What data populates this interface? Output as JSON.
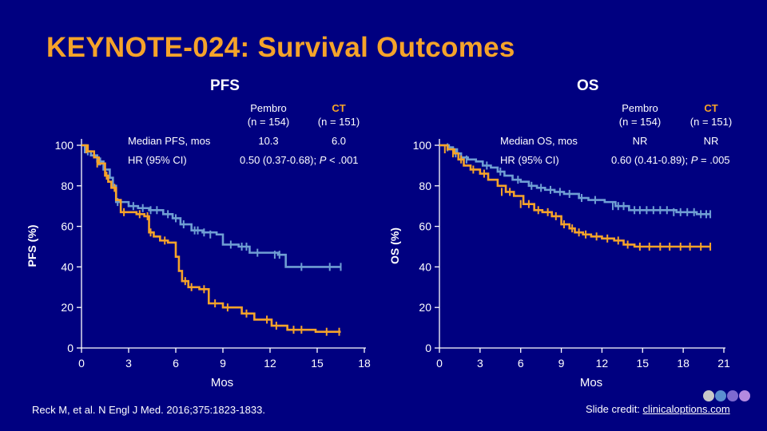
{
  "slide": {
    "title": "KEYNOTE-024: Survival Outcomes",
    "reference": "Reck M, et al. N Engl J Med. 2016;375:1823-1833.",
    "credit_prefix": "Slide credit: ",
    "credit_link": "clinicaloptions.com"
  },
  "colors": {
    "background": "#000080",
    "title": "#f5a32a",
    "pembro": "#6f9ed3",
    "ct": "#f5a32a"
  },
  "pfs": {
    "panel_title": "PFS",
    "table": {
      "col1_name": "Pembro",
      "col1_n": "(n = 154)",
      "col2_name": "CT",
      "col2_n": "(n = 151)",
      "row1_label": "Median PFS, mos",
      "row1_val1": "10.3",
      "row1_val2": "6.0",
      "row2_label": "HR (95% CI)",
      "row2_val_prefix": "0.50 (0.37-0.68); ",
      "row2_val_p": "P",
      "row2_val_suffix": " < .001"
    }
  },
  "os": {
    "panel_title": "OS",
    "table": {
      "col1_name": "Pembro",
      "col1_n": "(n = 154)",
      "col2_name": "CT",
      "col2_n": "(n = 151)",
      "row1_label": "Median OS, mos",
      "row1_val1": "NR",
      "row1_val2": "NR",
      "row2_label": "HR (95% CI)",
      "row2_val_prefix": "0.60 (0.41-0.89); ",
      "row2_val_p": "P",
      "row2_val_suffix": " = .005"
    }
  },
  "chart_data": [
    {
      "type": "line",
      "step": true,
      "title": "PFS",
      "xlabel": "Mos",
      "ylabel": "PFS (%)",
      "xticks": [
        0,
        3,
        6,
        9,
        12,
        15,
        18
      ],
      "yticks": [
        0,
        20,
        40,
        60,
        80,
        100
      ],
      "xlim": [
        0,
        18
      ],
      "ylim": [
        0,
        100
      ],
      "series": [
        {
          "name": "Pembro",
          "color": "#6f9ed3",
          "x": [
            0,
            0.3,
            0.6,
            1.0,
            1.4,
            1.8,
            2.0,
            2.2,
            3.0,
            3.6,
            4.3,
            5.2,
            5.8,
            6.3,
            7.0,
            7.7,
            8.6,
            9.0,
            10.0,
            10.7,
            12.5,
            13.0,
            14.9,
            16.5
          ],
          "y": [
            100,
            97,
            95,
            92,
            88,
            84,
            80,
            72,
            70,
            69,
            68,
            66,
            64,
            61,
            58,
            57,
            56,
            51,
            50,
            47,
            46,
            40,
            40,
            40
          ],
          "censor_x": [
            0.2,
            0.4,
            1.1,
            1.2,
            1.5,
            2.3,
            3.3,
            3.9,
            4.4,
            4.8,
            5.5,
            6.0,
            6.5,
            7.2,
            7.4,
            7.8,
            8.2,
            9.5,
            10.2,
            10.5,
            11.2,
            12.3,
            12.6,
            14.0,
            15.8,
            16.5
          ],
          "censor_y": [
            98,
            97,
            92,
            92,
            88,
            72,
            70,
            69,
            68,
            68,
            66,
            64,
            61,
            58,
            58,
            57,
            56,
            51,
            50,
            50,
            47,
            46,
            46,
            40,
            40,
            40
          ]
        },
        {
          "name": "CT",
          "color": "#f5a32a",
          "x": [
            0,
            0.4,
            0.8,
            1.1,
            1.5,
            1.7,
            1.9,
            2.2,
            2.5,
            3.5,
            4.0,
            4.3,
            4.6,
            5.0,
            5.5,
            6.0,
            6.2,
            6.4,
            6.8,
            7.5,
            8.1,
            9.0,
            10.2,
            11.0,
            12.1,
            13.1,
            14.9,
            16.5
          ],
          "y": [
            100,
            97,
            94,
            91,
            85,
            82,
            79,
            73,
            67,
            66,
            65,
            57,
            55,
            53,
            52,
            45,
            38,
            33,
            30,
            29,
            22,
            20,
            17,
            14,
            11,
            9,
            8,
            8
          ],
          "censor_x": [
            0.3,
            1.0,
            1.6,
            2.1,
            2.7,
            3.7,
            4.2,
            4.4,
            5.3,
            6.6,
            7.0,
            7.8,
            8.5,
            9.3,
            10.5,
            11.8,
            12.4,
            13.5,
            14.0,
            15.6,
            16.4
          ],
          "censor_y": [
            98,
            91,
            85,
            79,
            67,
            66,
            65,
            57,
            53,
            33,
            30,
            29,
            22,
            20,
            17,
            14,
            11,
            9,
            9,
            8,
            8
          ]
        }
      ]
    },
    {
      "type": "line",
      "step": true,
      "title": "OS",
      "xlabel": "Mos",
      "ylabel": "OS (%)",
      "xticks": [
        0,
        3,
        6,
        9,
        12,
        15,
        18,
        21
      ],
      "yticks": [
        0,
        20,
        40,
        60,
        80,
        100
      ],
      "xlim": [
        0,
        21
      ],
      "ylim": [
        0,
        100
      ],
      "series": [
        {
          "name": "Pembro",
          "color": "#6f9ed3",
          "x": [
            0,
            0.7,
            1.0,
            1.3,
            1.6,
            2.1,
            2.7,
            3.2,
            3.8,
            4.3,
            4.8,
            5.4,
            6.0,
            6.6,
            7.2,
            7.8,
            8.5,
            9.2,
            10.3,
            11.0,
            12.2,
            13.0,
            14.0,
            16.0,
            17.5,
            19.0,
            20.0
          ],
          "y": [
            100,
            99,
            98,
            96,
            94,
            93,
            92,
            90,
            89,
            87,
            85,
            83,
            82,
            80,
            79,
            78,
            77,
            76,
            74,
            73,
            72,
            70,
            68,
            68,
            67,
            66,
            66
          ],
          "censor_x": [
            0.6,
            1.2,
            2.0,
            3.5,
            4.5,
            5.8,
            6.8,
            7.5,
            8.2,
            8.9,
            9.6,
            10.5,
            11.5,
            12.8,
            13.2,
            13.6,
            14.4,
            14.8,
            15.3,
            15.8,
            16.3,
            16.8,
            17.3,
            17.8,
            18.3,
            18.8,
            19.3,
            19.7,
            20.0
          ],
          "censor_y": [
            99,
            96,
            93,
            90,
            87,
            83,
            80,
            79,
            78,
            77,
            76,
            74,
            73,
            70,
            70,
            70,
            68,
            68,
            68,
            68,
            68,
            68,
            67,
            67,
            67,
            67,
            66,
            66,
            66
          ]
        },
        {
          "name": "CT",
          "color": "#f5a32a",
          "x": [
            0,
            0.6,
            1.1,
            1.4,
            1.8,
            2.3,
            3.0,
            3.6,
            4.3,
            4.9,
            5.5,
            6.2,
            7.0,
            7.6,
            8.3,
            9.0,
            9.6,
            10.0,
            10.6,
            11.2,
            12.0,
            12.9,
            13.6,
            14.4,
            16.0,
            17.5,
            19.0,
            20.0
          ],
          "y": [
            100,
            98,
            96,
            93,
            90,
            88,
            86,
            83,
            80,
            77,
            75,
            71,
            68,
            67,
            65,
            61,
            59,
            57,
            56,
            55,
            54,
            53,
            51,
            50,
            50,
            50,
            50,
            50
          ],
          "censor_x": [
            0.4,
            1.0,
            1.6,
            2.5,
            3.3,
            4.6,
            5.2,
            6.0,
            6.6,
            7.3,
            8.0,
            8.6,
            9.2,
            9.8,
            10.3,
            10.8,
            11.6,
            12.4,
            13.2,
            13.9,
            14.8,
            15.5,
            16.3,
            17.0,
            17.8,
            18.5,
            19.3,
            20.0
          ],
          "censor_y": [
            98,
            96,
            93,
            88,
            86,
            77,
            77,
            71,
            71,
            68,
            67,
            65,
            61,
            59,
            57,
            56,
            55,
            54,
            53,
            51,
            50,
            50,
            50,
            50,
            50,
            50,
            50,
            50
          ]
        }
      ]
    }
  ]
}
